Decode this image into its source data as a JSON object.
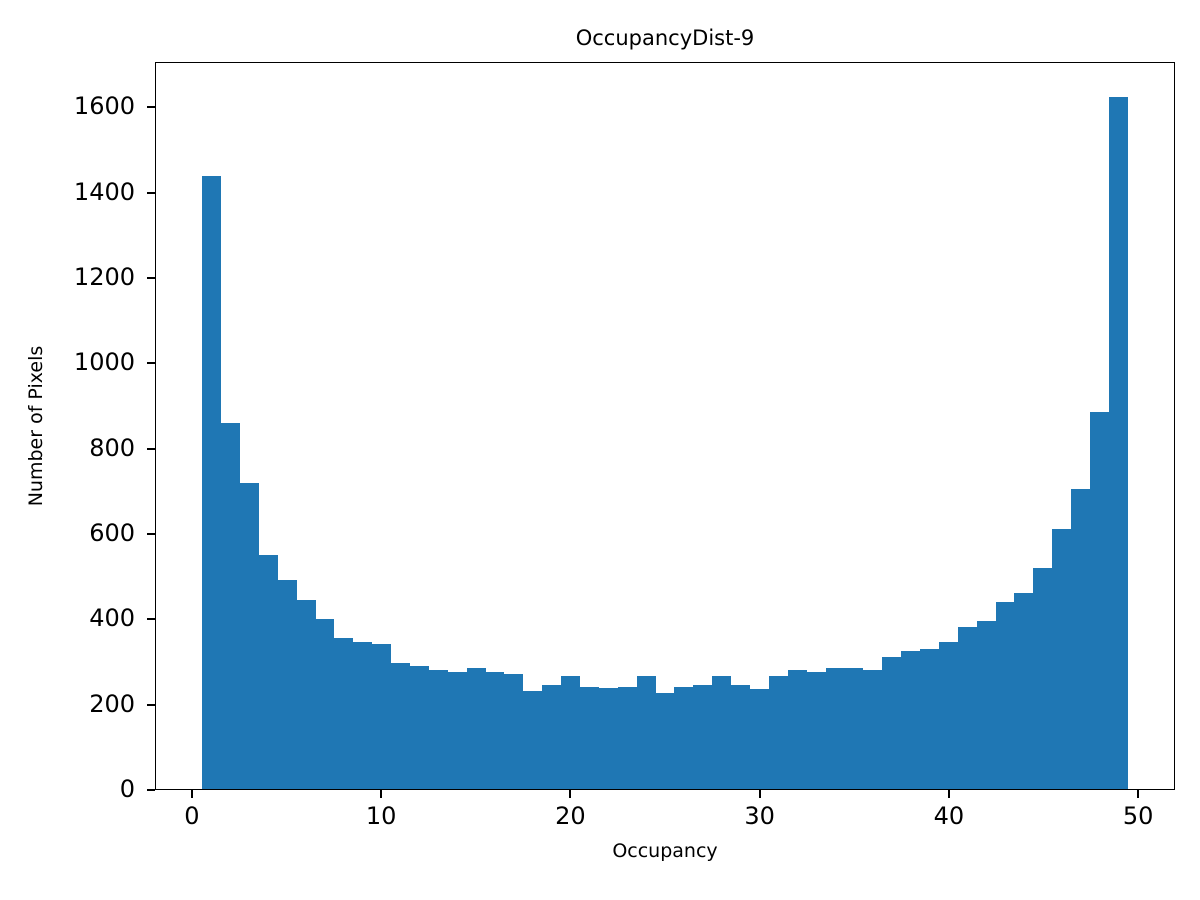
{
  "chart_data": {
    "type": "bar",
    "title": "OccupancyDist-9",
    "xlabel": "Occupancy",
    "ylabel": "Number of Pixels",
    "bar_color": "#1f77b4",
    "bin_start": 0.5,
    "bin_width": 1,
    "values": [
      1440,
      860,
      720,
      550,
      490,
      445,
      400,
      355,
      345,
      340,
      295,
      290,
      280,
      275,
      285,
      275,
      270,
      230,
      245,
      265,
      240,
      238,
      240,
      265,
      225,
      240,
      245,
      265,
      245,
      235,
      265,
      280,
      275,
      285,
      285,
      280,
      310,
      325,
      330,
      345,
      380,
      395,
      440,
      460,
      520,
      610,
      705,
      885,
      1625
    ],
    "xlim": [
      -1.95,
      51.95
    ],
    "ylim": [
      0,
      1706
    ],
    "xticks": [
      0,
      10,
      20,
      30,
      40,
      50
    ],
    "yticks": [
      0,
      200,
      400,
      600,
      800,
      1000,
      1200,
      1400,
      1600
    ],
    "grid": false,
    "legend": false
  }
}
